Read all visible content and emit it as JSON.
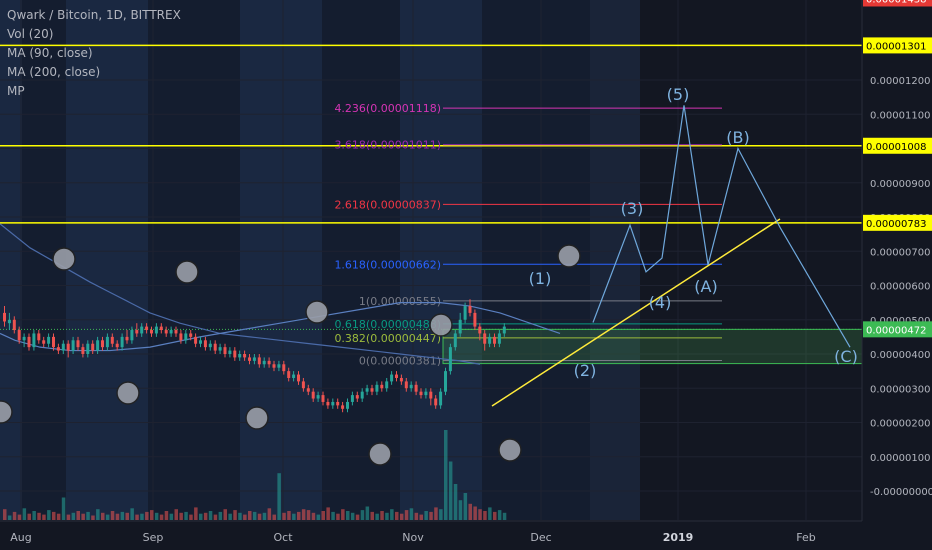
{
  "legend": {
    "symbol": "Qwark / Bitcoin, 1D, BITTREX",
    "vol": "Vol (20)",
    "ma90": "MA (90, close)",
    "ma200": "MA (200, close)",
    "mp": "MP"
  },
  "chart_data": {
    "type": "candlestick",
    "symbol": "Qwark / Bitcoin",
    "interval": "1D",
    "exchange": "BITTREX",
    "y_axis": {
      "ticks": [
        1.2e-05,
        1.1e-05,
        1e-05,
        9e-06,
        8e-06,
        7e-06,
        6e-06,
        5e-06,
        4e-06,
        3e-06,
        2e-06,
        1e-06,
        0
      ],
      "tick_labels": [
        "0.00001200",
        "0.00001100",
        "0.00001000",
        "0.00000900",
        "0.00000800",
        "0.00000700",
        "0.00000600",
        "0.00000500",
        "0.00000400",
        "0.00000300",
        "0.00000200",
        "0.00000100",
        "-0.00000000"
      ]
    },
    "x_axis": {
      "labels": [
        "Aug",
        "Sep",
        "Oct",
        "Nov",
        "Dec",
        "2019",
        "Feb"
      ],
      "highlighted": "2019"
    },
    "price_labels": [
      {
        "value": "0.00001438",
        "color": "#e53935",
        "style": "dashed"
      },
      {
        "value": "0.00001301",
        "color": "#ffff00"
      },
      {
        "value": "0.00001008",
        "color": "#ffff00"
      },
      {
        "value": "0.00000783",
        "color": "#ffff00"
      },
      {
        "value": "0.00000472",
        "color": "#3cba54"
      }
    ],
    "fib_levels": [
      {
        "label": "4.236(0.00001118)",
        "value": 1.118e-05,
        "color": "#d534b4"
      },
      {
        "label": "3.618(0.00001011)",
        "value": 1.011e-05,
        "color": "#9c27b0"
      },
      {
        "label": "2.618(0.00000837)",
        "value": 8.37e-06,
        "color": "#f23645"
      },
      {
        "label": "1.618(0.00000662)",
        "value": 6.62e-06,
        "color": "#2962ff"
      },
      {
        "label": "1(0.00000555)",
        "value": 5.55e-06,
        "color": "#787b86"
      },
      {
        "label": "0.618(0.00000488)",
        "value": 4.88e-06,
        "color": "#089981"
      },
      {
        "label": "0.382(0.00000447)",
        "value": 4.47e-06,
        "color": "#9cbb3c"
      },
      {
        "label": "0(0.00000381)",
        "value": 3.81e-06,
        "color": "#787b86"
      }
    ],
    "wave_labels": [
      "(1)",
      "(2)",
      "(3)",
      "(4)",
      "(5)",
      "(A)",
      "(B)",
      "(C)"
    ],
    "candles": [
      [
        5.2e-06,
        4.95e-06,
        5.4e-06,
        4.8e-06
      ],
      [
        4.9e-06,
        5e-06,
        5.2e-06,
        4.7e-06
      ],
      [
        5e-06,
        4.7e-06,
        5.1e-06,
        4.6e-06
      ],
      [
        4.7e-06,
        4.4e-06,
        4.8e-06,
        4.3e-06
      ],
      [
        4.4e-06,
        4.5e-06,
        4.6e-06,
        4.2e-06
      ],
      [
        4.5e-06,
        4.2e-06,
        4.6e-06,
        4.1e-06
      ],
      [
        4.2e-06,
        4.6e-06,
        4.7e-06,
        4.1e-06
      ],
      [
        4.6e-06,
        4.4e-06,
        4.7e-06,
        4.3e-06
      ],
      [
        4.4e-06,
        4.3e-06,
        4.5e-06,
        4.2e-06
      ],
      [
        4.3e-06,
        4.5e-06,
        4.6e-06,
        4.2e-06
      ],
      [
        4.5e-06,
        4.2e-06,
        4.6e-06,
        4.1e-06
      ],
      [
        4.2e-06,
        4.1e-06,
        4.3e-06,
        4e-06
      ],
      [
        4.1e-06,
        4.3e-06,
        4.4e-06,
        4e-06
      ],
      [
        4.3e-06,
        4.1e-06,
        4.4e-06,
        3.9e-06
      ],
      [
        4.1e-06,
        4.4e-06,
        4.5e-06,
        4e-06
      ],
      [
        4.4e-06,
        4.2e-06,
        4.5e-06,
        4.1e-06
      ],
      [
        4.2e-06,
        4e-06,
        4.3e-06,
        3.9e-06
      ],
      [
        4e-06,
        4.3e-06,
        4.4e-06,
        3.9e-06
      ],
      [
        4.3e-06,
        4.1e-06,
        4.4e-06,
        4e-06
      ],
      [
        4.1e-06,
        4.4e-06,
        4.5e-06,
        4e-06
      ],
      [
        4.4e-06,
        4.2e-06,
        4.5e-06,
        4.1e-06
      ],
      [
        4.2e-06,
        4.5e-06,
        4.6e-06,
        4.1e-06
      ],
      [
        4.5e-06,
        4.3e-06,
        4.6e-06,
        4.2e-06
      ],
      [
        4.3e-06,
        4.2e-06,
        4.4e-06,
        4.1e-06
      ],
      [
        4.2e-06,
        4.5e-06,
        4.6e-06,
        4.1e-06
      ],
      [
        4.5e-06,
        4.4e-06,
        4.7e-06,
        4.3e-06
      ],
      [
        4.4e-06,
        4.7e-06,
        4.8e-06,
        4.3e-06
      ],
      [
        4.7e-06,
        4.6e-06,
        4.9e-06,
        4.5e-06
      ],
      [
        4.6e-06,
        4.8e-06,
        4.9e-06,
        4.5e-06
      ],
      [
        4.8e-06,
        4.7e-06,
        4.9e-06,
        4.6e-06
      ],
      [
        4.7e-06,
        4.6e-06,
        4.8e-06,
        4.5e-06
      ],
      [
        4.6e-06,
        4.8e-06,
        4.9e-06,
        4.5e-06
      ],
      [
        4.8e-06,
        4.7e-06,
        4.9e-06,
        4.6e-06
      ],
      [
        4.7e-06,
        4.6e-06,
        4.8e-06,
        4.5e-06
      ],
      [
        4.6e-06,
        4.7e-06,
        4.8e-06,
        4.5e-06
      ],
      [
        4.7e-06,
        4.6e-06,
        4.8e-06,
        4.5e-06
      ],
      [
        4.6e-06,
        4.4e-06,
        4.7e-06,
        4.3e-06
      ],
      [
        4.4e-06,
        4.6e-06,
        4.7e-06,
        4.3e-06
      ],
      [
        4.6e-06,
        4.5e-06,
        4.7e-06,
        4.4e-06
      ],
      [
        4.5e-06,
        4.3e-06,
        4.6e-06,
        4.2e-06
      ],
      [
        4.3e-06,
        4.4e-06,
        4.5e-06,
        4.2e-06
      ],
      [
        4.4e-06,
        4.2e-06,
        4.5e-06,
        4.1e-06
      ],
      [
        4.2e-06,
        4.3e-06,
        4.4e-06,
        4.1e-06
      ],
      [
        4.3e-06,
        4.1e-06,
        4.4e-06,
        4e-06
      ],
      [
        4.1e-06,
        4.2e-06,
        4.3e-06,
        4e-06
      ],
      [
        4.2e-06,
        4e-06,
        4.3e-06,
        3.9e-06
      ],
      [
        4e-06,
        4.1e-06,
        4.2e-06,
        3.9e-06
      ],
      [
        4.1e-06,
        3.9e-06,
        4.2e-06,
        3.8e-06
      ],
      [
        3.9e-06,
        4e-06,
        4.1e-06,
        3.8e-06
      ],
      [
        4e-06,
        3.9e-06,
        4.1e-06,
        3.8e-06
      ],
      [
        3.9e-06,
        3.8e-06,
        4e-06,
        3.7e-06
      ],
      [
        3.8e-06,
        3.9e-06,
        4e-06,
        3.7e-06
      ],
      [
        3.9e-06,
        3.7e-06,
        4e-06,
        3.6e-06
      ],
      [
        3.7e-06,
        3.8e-06,
        3.9e-06,
        3.6e-06
      ],
      [
        3.8e-06,
        3.7e-06,
        3.9e-06,
        3.6e-06
      ],
      [
        3.7e-06,
        3.6e-06,
        3.8e-06,
        3.5e-06
      ],
      [
        3.6e-06,
        3.7e-06,
        3.8e-06,
        3.5e-06
      ],
      [
        3.7e-06,
        3.5e-06,
        3.8e-06,
        3.4e-06
      ],
      [
        3.5e-06,
        3.3e-06,
        3.6e-06,
        3.2e-06
      ],
      [
        3.3e-06,
        3.4e-06,
        3.5e-06,
        3.2e-06
      ],
      [
        3.4e-06,
        3.2e-06,
        3.5e-06,
        3.1e-06
      ],
      [
        3.2e-06,
        3e-06,
        3.3e-06,
        2.9e-06
      ],
      [
        3e-06,
        2.9e-06,
        3.1e-06,
        2.8e-06
      ],
      [
        2.9e-06,
        2.7e-06,
        3e-06,
        2.6e-06
      ],
      [
        2.7e-06,
        2.8e-06,
        2.9e-06,
        2.6e-06
      ],
      [
        2.8e-06,
        2.6e-06,
        2.9e-06,
        2.5e-06
      ],
      [
        2.6e-06,
        2.5e-06,
        2.7e-06,
        2.4e-06
      ],
      [
        2.5e-06,
        2.6e-06,
        2.7e-06,
        2.4e-06
      ],
      [
        2.6e-06,
        2.5e-06,
        2.7e-06,
        2.4e-06
      ],
      [
        2.5e-06,
        2.4e-06,
        2.6e-06,
        2.3e-06
      ],
      [
        2.4e-06,
        2.6e-06,
        2.7e-06,
        2.3e-06
      ],
      [
        2.6e-06,
        2.8e-06,
        2.9e-06,
        2.5e-06
      ],
      [
        2.8e-06,
        2.7e-06,
        2.9e-06,
        2.6e-06
      ],
      [
        2.7e-06,
        2.9e-06,
        3e-06,
        2.6e-06
      ],
      [
        2.9e-06,
        3e-06,
        3.1e-06,
        2.8e-06
      ],
      [
        3e-06,
        2.9e-06,
        3.1e-06,
        2.8e-06
      ],
      [
        2.9e-06,
        3.1e-06,
        3.2e-06,
        2.8e-06
      ],
      [
        3.1e-06,
        3e-06,
        3.2e-06,
        2.9e-06
      ],
      [
        3e-06,
        3.2e-06,
        3.3e-06,
        2.9e-06
      ],
      [
        3.2e-06,
        3.4e-06,
        3.5e-06,
        3.1e-06
      ],
      [
        3.4e-06,
        3.3e-06,
        3.5e-06,
        3.2e-06
      ],
      [
        3.3e-06,
        3.2e-06,
        3.4e-06,
        3.1e-06
      ],
      [
        3.2e-06,
        3e-06,
        3.3e-06,
        2.9e-06
      ],
      [
        3e-06,
        3.1e-06,
        3.2e-06,
        2.9e-06
      ],
      [
        3.1e-06,
        2.9e-06,
        3.2e-06,
        2.8e-06
      ],
      [
        2.9e-06,
        2.8e-06,
        3e-06,
        2.7e-06
      ],
      [
        2.8e-06,
        2.9e-06,
        3e-06,
        2.7e-06
      ],
      [
        2.9e-06,
        2.7e-06,
        3e-06,
        2.5e-06
      ],
      [
        2.7e-06,
        2.5e-06,
        2.8e-06,
        2.4e-06
      ],
      [
        2.5e-06,
        2.9e-06,
        3e-06,
        2.4e-06
      ],
      [
        2.9e-06,
        3.5e-06,
        3.6e-06,
        2.8e-06
      ],
      [
        3.5e-06,
        4.2e-06,
        4.3e-06,
        3.4e-06
      ],
      [
        4.2e-06,
        4.6e-06,
        4.7e-06,
        4.1e-06
      ],
      [
        4.6e-06,
        5e-06,
        5.2e-06,
        4.5e-06
      ],
      [
        5e-06,
        5.4e-06,
        5.5e-06,
        4.9e-06
      ],
      [
        5.4e-06,
        5.2e-06,
        5.6e-06,
        5.1e-06
      ],
      [
        5.2e-06,
        4.8e-06,
        5.3e-06,
        4.7e-06
      ],
      [
        4.8e-06,
        4.6e-06,
        4.9e-06,
        4.4e-06
      ],
      [
        4.6e-06,
        4.3e-06,
        4.7e-06,
        4.1e-06
      ],
      [
        4.3e-06,
        4.5e-06,
        4.6e-06,
        4.2e-06
      ],
      [
        4.5e-06,
        4.3e-06,
        4.6e-06,
        4.2e-06
      ],
      [
        4.3e-06,
        4.6e-06,
        4.7e-06,
        4.2e-06
      ],
      [
        4.6e-06,
        4.8e-06,
        4.9e-06,
        4.5e-06
      ]
    ],
    "volumes": [
      0.12,
      0.05,
      0.09,
      0.06,
      0.13,
      0.07,
      0.1,
      0.08,
      0.06,
      0.11,
      0.09,
      0.07,
      0.25,
      0.06,
      0.08,
      0.1,
      0.07,
      0.09,
      0.05,
      0.12,
      0.08,
      0.06,
      0.1,
      0.07,
      0.09,
      0.08,
      0.13,
      0.06,
      0.07,
      0.09,
      0.11,
      0.08,
      0.06,
      0.1,
      0.07,
      0.12,
      0.08,
      0.09,
      0.06,
      0.14,
      0.07,
      0.08,
      0.1,
      0.06,
      0.09,
      0.12,
      0.07,
      0.11,
      0.08,
      0.06,
      0.1,
      0.09,
      0.07,
      0.08,
      0.13,
      0.06,
      0.52,
      0.08,
      0.1,
      0.07,
      0.09,
      0.12,
      0.11,
      0.08,
      0.06,
      0.1,
      0.14,
      0.09,
      0.07,
      0.12,
      0.1,
      0.08,
      0.06,
      0.11,
      0.15,
      0.09,
      0.07,
      0.1,
      0.08,
      0.12,
      0.09,
      0.07,
      0.11,
      0.13,
      0.08,
      0.06,
      0.1,
      0.09,
      0.14,
      0.12,
      1.0,
      0.65,
      0.4,
      0.22,
      0.3,
      0.18,
      0.15,
      0.12,
      0.1,
      0.14,
      0.09,
      0.11,
      0.08
    ],
    "ma200": [
      [
        0,
        7.8e-06
      ],
      [
        30,
        7.1e-06
      ],
      [
        60,
        6.6e-06
      ],
      [
        90,
        6.1e-06
      ],
      [
        110,
        5.8e-06
      ],
      [
        130,
        5.5e-06
      ],
      [
        150,
        5.2e-06
      ],
      [
        180,
        4.9e-06
      ],
      [
        220,
        4.6e-06
      ],
      [
        250,
        4.5e-06
      ],
      [
        280,
        4.4e-06
      ],
      [
        310,
        4.3e-06
      ],
      [
        340,
        4.2e-06
      ],
      [
        370,
        4.1e-06
      ],
      [
        400,
        4e-06
      ],
      [
        430,
        3.9e-06
      ],
      [
        460,
        3.8e-06
      ],
      [
        480,
        3.7e-06
      ]
    ],
    "ma90": [
      [
        0,
        4.6e-06
      ],
      [
        15,
        4.4e-06
      ],
      [
        40,
        4.2e-06
      ],
      [
        70,
        4.1e-06
      ],
      [
        110,
        4.1e-06
      ],
      [
        150,
        4.2e-06
      ],
      [
        200,
        4.5e-06
      ],
      [
        240,
        4.7e-06
      ],
      [
        280,
        4.9e-06
      ],
      [
        320,
        5.1e-06
      ],
      [
        360,
        5.3e-06
      ],
      [
        400,
        5.5e-06
      ],
      [
        440,
        5.5e-06
      ],
      [
        470,
        5.4e-06
      ],
      [
        500,
        5.2e-06
      ],
      [
        530,
        4.9e-06
      ],
      [
        560,
        4.6e-06
      ]
    ],
    "projection": [
      [
        593,
        4.92e-06
      ],
      [
        630,
        7.76e-06
      ],
      [
        646,
        6.4e-06
      ],
      [
        662,
        6.8e-06
      ],
      [
        684,
        1.126e-05
      ],
      [
        708,
        6.6e-06
      ],
      [
        738,
        1e-05
      ],
      [
        780,
        7.7e-06
      ],
      [
        850,
        4.2e-06
      ]
    ]
  }
}
